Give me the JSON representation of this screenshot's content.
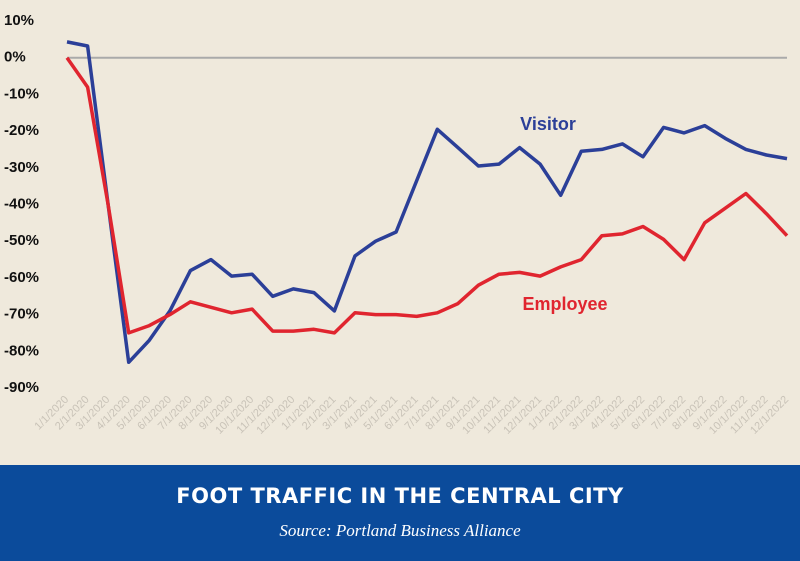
{
  "chart_data": {
    "type": "line",
    "title": "FOOT TRAFFIC IN THE CENTRAL CITY",
    "subtitle": "Source: Portland Business Alliance",
    "categories": [
      "1/1/2020",
      "2/1/2020",
      "3/1/2020",
      "4/1/2020",
      "5/1/2020",
      "6/1/2020",
      "7/1/2020",
      "8/1/2020",
      "9/1/2020",
      "10/1/2020",
      "11/1/2020",
      "12/1/2020",
      "1/1/2021",
      "2/1/2021",
      "3/1/2021",
      "4/1/2021",
      "5/1/2021",
      "6/1/2021",
      "7/1/2021",
      "8/1/2021",
      "9/1/2021",
      "10/1/2021",
      "11/1/2021",
      "12/1/2021",
      "1/1/2022",
      "2/1/2022",
      "3/1/2022",
      "4/1/2022",
      "5/1/2022",
      "6/1/2022",
      "7/1/2022",
      "8/1/2022",
      "9/1/2022",
      "10/1/2022",
      "11/1/2022",
      "12/1/2022"
    ],
    "series": [
      {
        "name": "Visitor",
        "color": "#2b3f98",
        "values": [
          4.3,
          3.2,
          -40,
          -83,
          -77,
          -69,
          -58,
          -55,
          -59.5,
          -59,
          -65,
          -63,
          -64,
          -69,
          -54,
          -50,
          -47.5,
          -33.5,
          -19.5,
          -24.5,
          -29.5,
          -29,
          -24.5,
          -29,
          -37.5,
          -25.5,
          -25,
          -23.5,
          -27,
          -19,
          -20.5,
          -18.5,
          -22,
          -25,
          -26.5,
          -27.5
        ]
      },
      {
        "name": "Employee",
        "color": "#e0252f",
        "values": [
          0,
          -8,
          -40,
          -75,
          -73,
          -70,
          -66.5,
          -68,
          -69.5,
          -68.5,
          -74.5,
          -74.5,
          -74,
          -75,
          -69.5,
          -70,
          -70,
          -70.5,
          -69.5,
          -67,
          -62,
          -59,
          -58.5,
          -59.5,
          -57,
          -55,
          -48.5,
          -48,
          -46,
          -49.5,
          -55,
          -45,
          -41,
          -37,
          -42.5,
          -48.5
        ]
      }
    ],
    "ylim": [
      -90,
      10
    ],
    "yticks": [
      {
        "value": 10,
        "label": "10%"
      },
      {
        "value": 0,
        "label": "0%"
      },
      {
        "value": -10,
        "label": "-10%"
      },
      {
        "value": -20,
        "label": "-20%"
      },
      {
        "value": -30,
        "label": "-30%"
      },
      {
        "value": -40,
        "label": "-40%"
      },
      {
        "value": -50,
        "label": "-50%"
      },
      {
        "value": -60,
        "label": "-60%"
      },
      {
        "value": -70,
        "label": "-70%"
      },
      {
        "value": -80,
        "label": "-80%"
      },
      {
        "value": -90,
        "label": "-90%"
      }
    ]
  }
}
